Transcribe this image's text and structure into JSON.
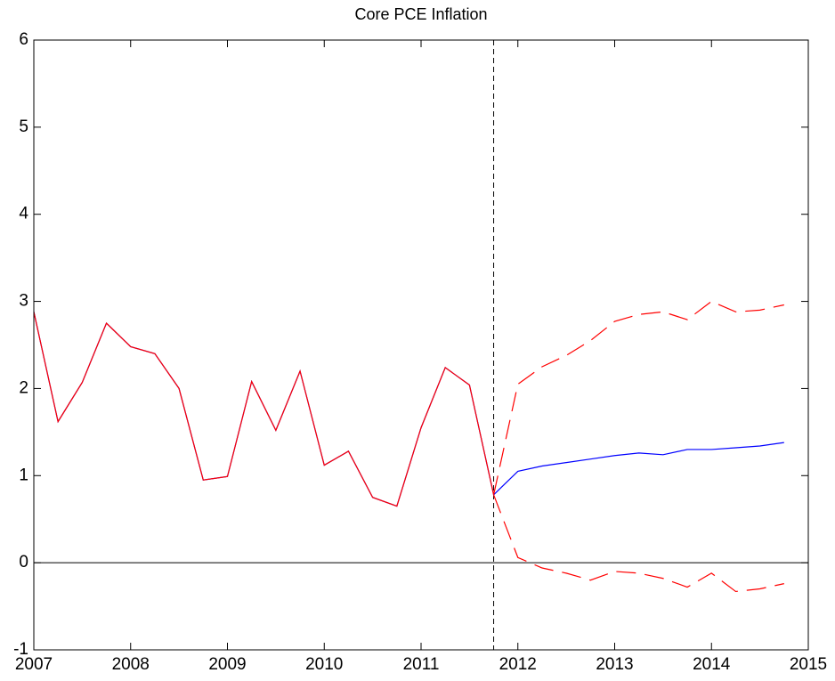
{
  "chart_data": {
    "type": "line",
    "title": "Core PCE Inflation",
    "x": [
      2007,
      2007.25,
      2007.5,
      2007.75,
      2008,
      2008.25,
      2008.5,
      2008.75,
      2009,
      2009.25,
      2009.5,
      2009.75,
      2010,
      2010.25,
      2010.5,
      2010.75,
      2011,
      2011.25,
      2011.5,
      2011.75,
      2012,
      2012.25,
      2012.5,
      2012.75,
      2013,
      2013.25,
      2013.5,
      2013.75,
      2014,
      2014.25,
      2014.5,
      2014.75
    ],
    "series": [
      {
        "color": "#0000ff",
        "dash": false,
        "values": [
          2.88,
          1.62,
          2.07,
          2.75,
          2.48,
          2.4,
          2.0,
          0.95,
          0.99,
          2.08,
          1.52,
          2.2,
          1.12,
          1.28,
          0.75,
          0.65,
          1.55,
          2.24,
          2.04,
          0.78,
          1.05,
          1.11,
          1.15,
          1.19,
          1.23,
          1.26,
          1.24,
          1.3,
          1.3,
          1.32,
          1.34,
          1.38
        ]
      },
      {
        "color": "#ff0000",
        "dash": false,
        "values": [
          2.88,
          1.62,
          2.07,
          2.75,
          2.48,
          2.4,
          2.0,
          0.95,
          0.99,
          2.08,
          1.52,
          2.2,
          1.12,
          1.28,
          0.75,
          0.65,
          1.55,
          2.24,
          2.04,
          0.78,
          null,
          null,
          null,
          null,
          null,
          null,
          null,
          null,
          null,
          null,
          null,
          null
        ]
      },
      {
        "color": "#ff0000",
        "dash": true,
        "values": [
          null,
          null,
          null,
          null,
          null,
          null,
          null,
          null,
          null,
          null,
          null,
          null,
          null,
          null,
          null,
          null,
          null,
          null,
          null,
          0.78,
          2.05,
          2.25,
          2.38,
          2.55,
          2.77,
          2.85,
          2.88,
          2.79,
          3.0,
          2.88,
          2.9,
          2.96
        ]
      },
      {
        "color": "#ff0000",
        "dash": true,
        "values": [
          null,
          null,
          null,
          null,
          null,
          null,
          null,
          null,
          null,
          null,
          null,
          null,
          null,
          null,
          null,
          null,
          null,
          null,
          null,
          0.78,
          0.06,
          -0.06,
          -0.12,
          -0.2,
          -0.1,
          -0.12,
          -0.18,
          -0.28,
          -0.12,
          -0.33,
          -0.3,
          -0.24
        ]
      }
    ],
    "xlim": [
      2007,
      2015
    ],
    "xticks": [
      2007,
      2008,
      2009,
      2010,
      2011,
      2012,
      2013,
      2014,
      2015
    ],
    "ylim": [
      -1,
      6
    ],
    "yticks": [
      -1,
      0,
      1,
      2,
      3,
      4,
      5,
      6
    ],
    "hline": 0,
    "vline": 2011.75,
    "grid": false
  }
}
